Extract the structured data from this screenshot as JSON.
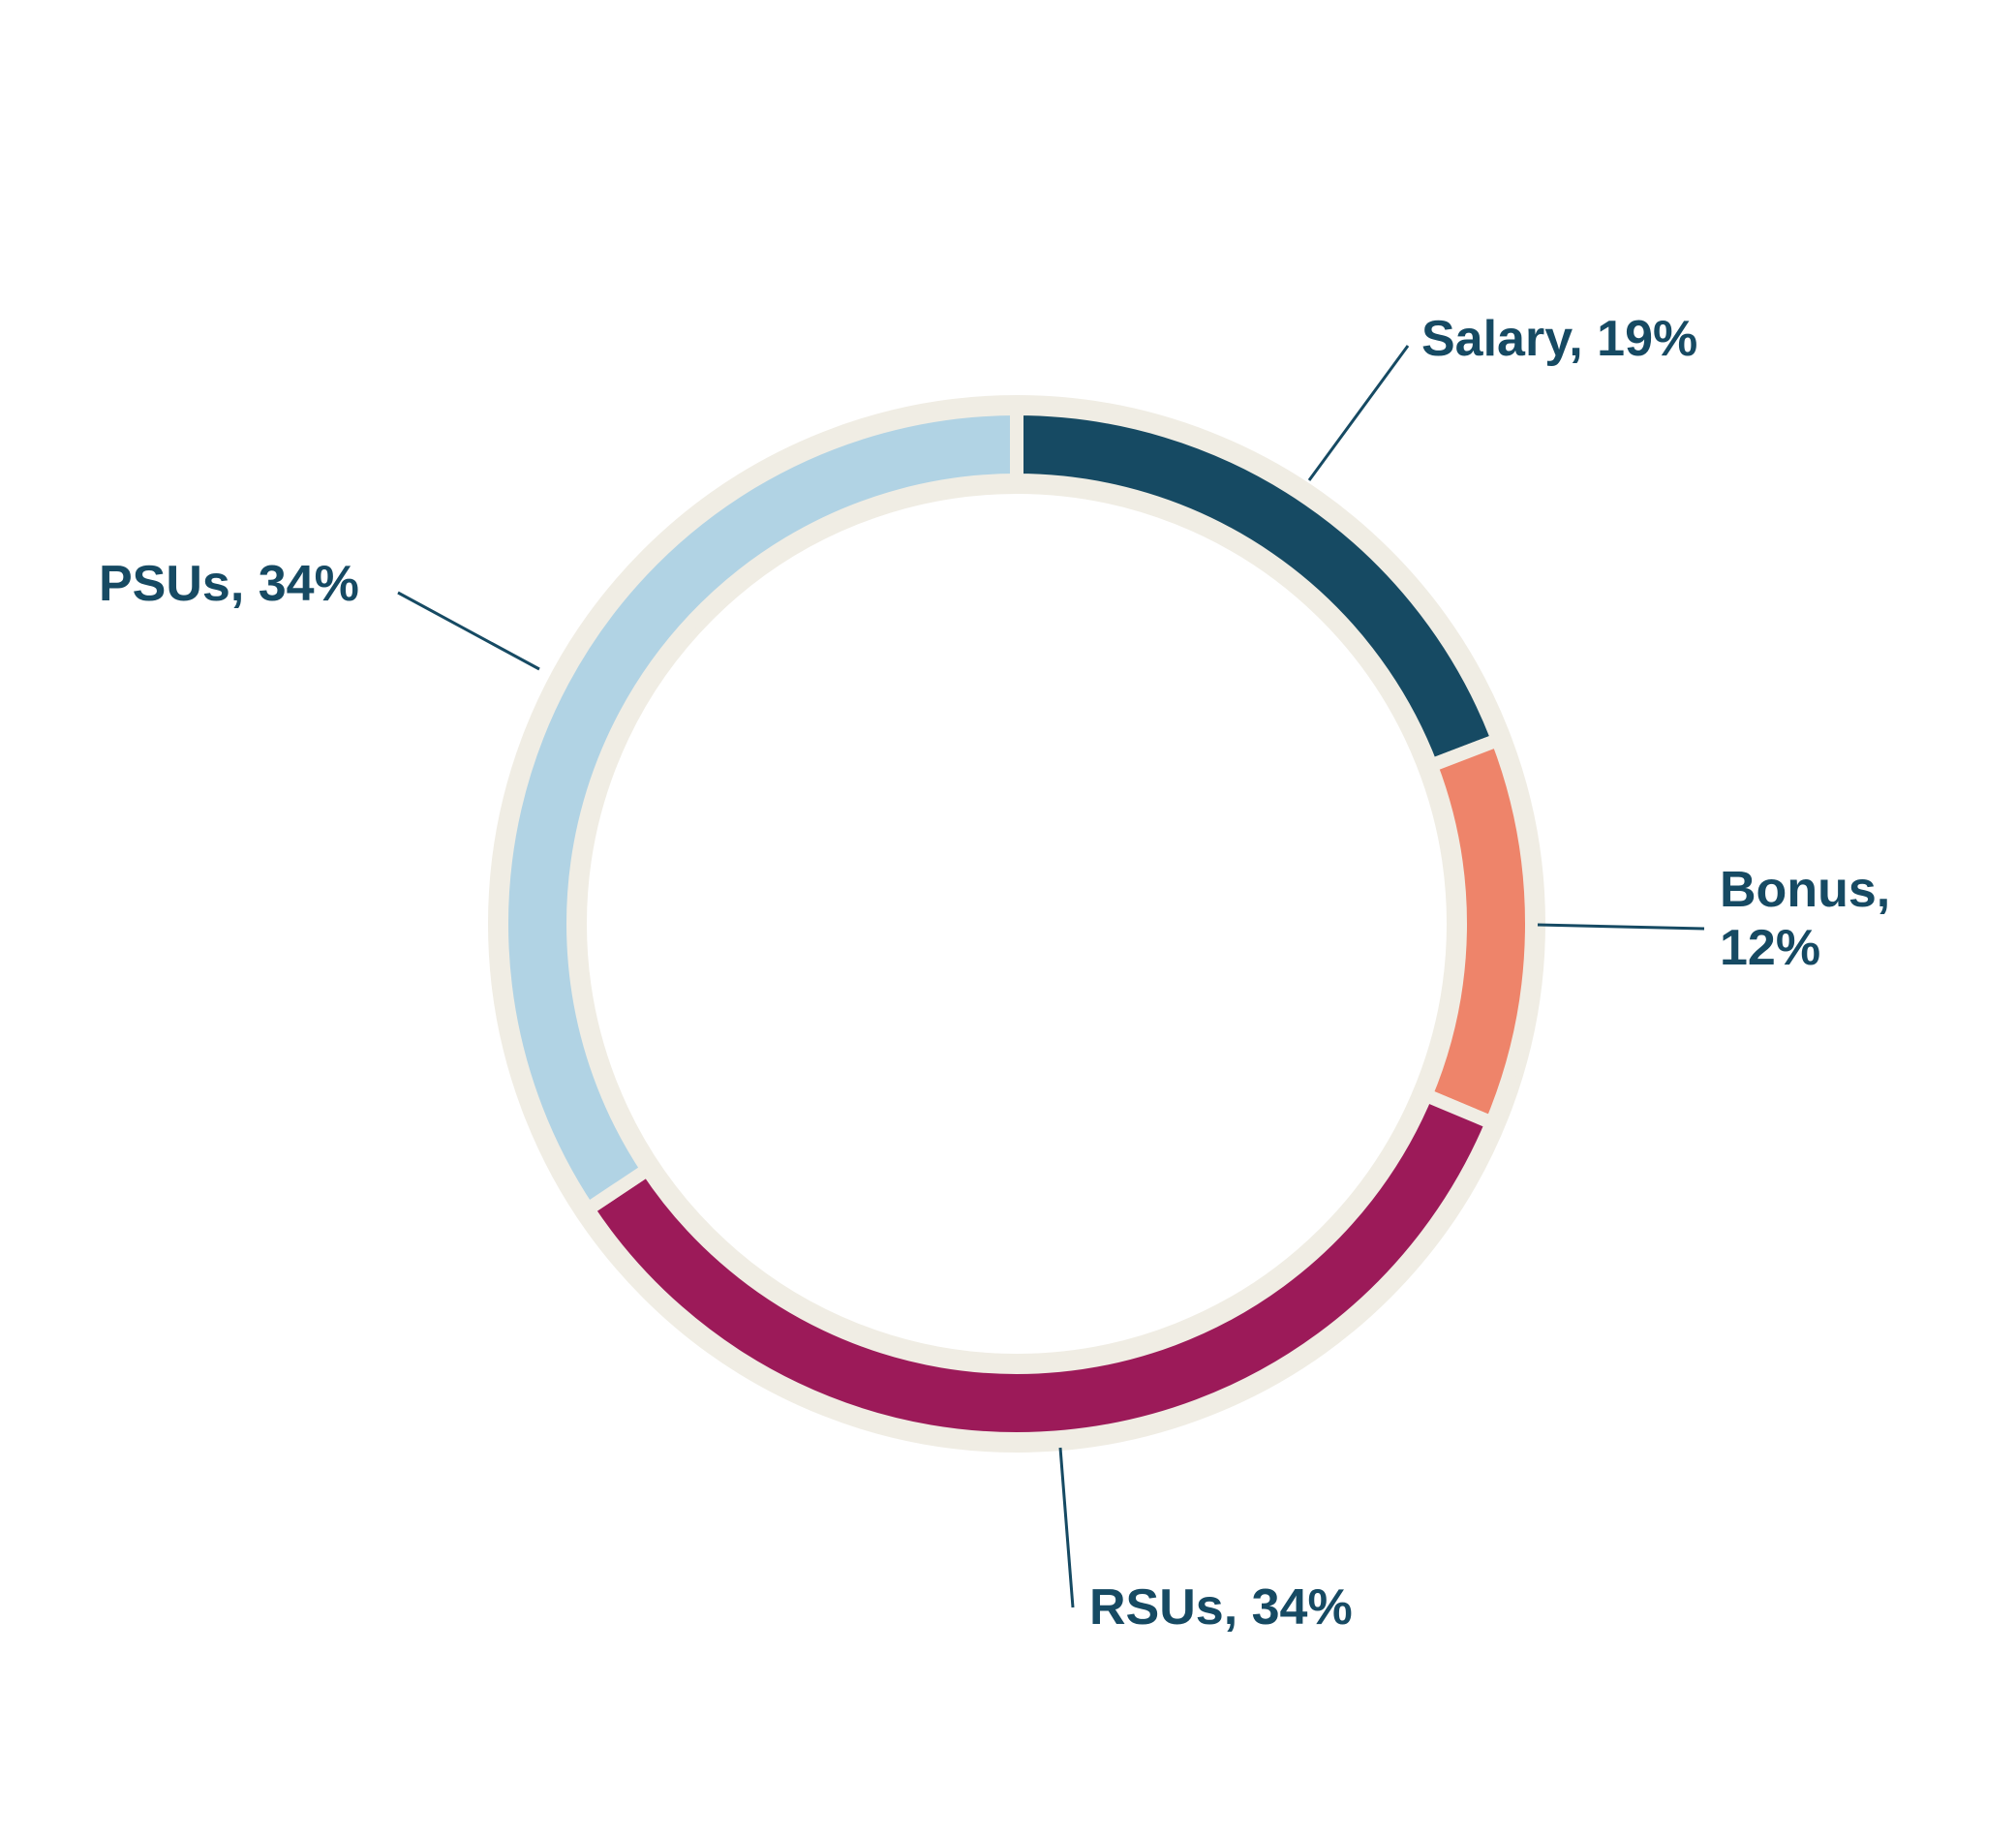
{
  "chart_data": {
    "type": "pie",
    "title": "",
    "slices": [
      {
        "category": "Salary",
        "value": 19,
        "label_lines": [
          "Salary, 19%"
        ],
        "color": "#164a63"
      },
      {
        "category": "Bonus",
        "value": 12,
        "label_lines": [
          "Bonus,",
          "12%"
        ],
        "color": "#ee846a"
      },
      {
        "category": "RSUs",
        "value": 34,
        "label_lines": [
          "RSUs, 34%"
        ],
        "color": "#9c1a59"
      },
      {
        "category": "PSUs",
        "value": 34,
        "label_lines": [
          "PSUs, 34%"
        ],
        "color": "#b1d3e4"
      }
    ],
    "donut": true,
    "outline_color": "#f0ede4",
    "label_color": "#164a63",
    "legend": "none"
  }
}
